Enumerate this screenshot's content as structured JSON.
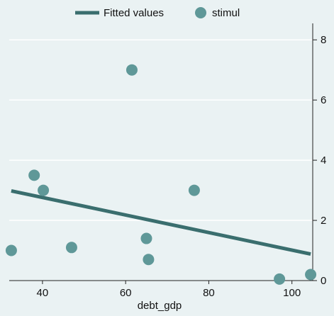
{
  "chart_data": {
    "type": "scatter",
    "title": "",
    "xlabel": "debt_gdp",
    "ylabel": "",
    "xlim": [
      32,
      105
    ],
    "ylim": [
      0,
      8.5
    ],
    "x_ticks": [
      40,
      60,
      80,
      100
    ],
    "y_ticks": [
      0,
      2,
      4,
      6,
      8
    ],
    "y_axis_side": "right",
    "grid": true,
    "legend_position": "top",
    "series": [
      {
        "name": "Fitted values",
        "kind": "line",
        "color": "#3a6e6e",
        "x": [
          32.5,
          104.5
        ],
        "y": [
          2.98,
          0.88
        ]
      },
      {
        "name": "stimul",
        "kind": "scatter",
        "color": "#5f9898",
        "x": [
          32.5,
          38,
          40.2,
          47,
          61.5,
          65,
          65.5,
          76.5,
          97,
          104.5
        ],
        "y": [
          1.0,
          3.5,
          3.0,
          1.1,
          7.0,
          1.4,
          0.7,
          3.0,
          0.05,
          0.2
        ]
      }
    ]
  }
}
